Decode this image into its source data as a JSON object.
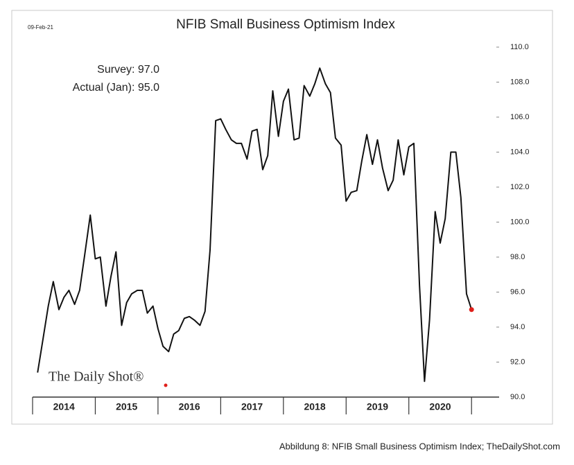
{
  "chart_data": {
    "type": "line",
    "title": "NFIB Small Business Optimism Index",
    "date": "09-Feb-21",
    "annotations": [
      "Survey: 97.0",
      "Actual (Jan): 95.0"
    ],
    "watermark": "The Daily Shot®",
    "caption": "Abbildung 8: NFIB Small Business Optimism Index; TheDailyShot.com",
    "x": [
      2014.08,
      2014.17,
      2014.25,
      2014.33,
      2014.42,
      2014.5,
      2014.58,
      2014.67,
      2014.75,
      2014.83,
      2014.92,
      2015.0,
      2015.08,
      2015.17,
      2015.25,
      2015.33,
      2015.42,
      2015.5,
      2015.58,
      2015.67,
      2015.75,
      2015.83,
      2015.92,
      2016.0,
      2016.08,
      2016.17,
      2016.25,
      2016.33,
      2016.42,
      2016.5,
      2016.58,
      2016.67,
      2016.75,
      2016.83,
      2016.92,
      2017.0,
      2017.08,
      2017.17,
      2017.25,
      2017.33,
      2017.42,
      2017.5,
      2017.58,
      2017.67,
      2017.75,
      2017.83,
      2017.92,
      2018.0,
      2018.08,
      2018.17,
      2018.25,
      2018.33,
      2018.42,
      2018.5,
      2018.58,
      2018.67,
      2018.75,
      2018.83,
      2018.92,
      2019.0,
      2019.08,
      2019.17,
      2019.25,
      2019.33,
      2019.42,
      2019.5,
      2019.58,
      2019.67,
      2019.75,
      2019.83,
      2019.92,
      2020.0,
      2020.08,
      2020.17,
      2020.25,
      2020.33,
      2020.42,
      2020.5,
      2020.58,
      2020.67,
      2020.75,
      2020.83,
      2020.92,
      2021.0
    ],
    "series": [
      {
        "name": "NFIB Small Business Optimism Index",
        "color": "#111111",
        "values": [
          91.4,
          93.4,
          95.2,
          96.6,
          95.0,
          95.7,
          96.1,
          95.3,
          96.1,
          98.1,
          100.4,
          97.9,
          98.0,
          95.2,
          96.9,
          98.3,
          94.1,
          95.4,
          95.9,
          96.1,
          96.1,
          94.8,
          95.2,
          93.9,
          92.9,
          92.6,
          93.6,
          93.8,
          94.5,
          94.6,
          94.4,
          94.1,
          94.9,
          98.4,
          105.8,
          105.9,
          105.3,
          104.7,
          104.5,
          104.5,
          103.6,
          105.2,
          105.3,
          103.0,
          103.8,
          107.5,
          104.9,
          106.9,
          107.6,
          104.7,
          104.8,
          107.8,
          107.2,
          107.9,
          108.8,
          107.9,
          107.4,
          104.8,
          104.4,
          101.2,
          101.7,
          101.8,
          103.5,
          105.0,
          103.3,
          104.7,
          103.1,
          101.8,
          102.4,
          104.7,
          102.7,
          104.3,
          104.5,
          96.4,
          90.9,
          94.4,
          100.6,
          98.8,
          100.2,
          104.0,
          104.0,
          101.4,
          95.9,
          95.0
        ]
      }
    ],
    "last_point_color": "#e0201b",
    "xlim": [
      2014,
      2021.44
    ],
    "xticks": [
      2014,
      2015,
      2016,
      2017,
      2018,
      2019,
      2020,
      2021
    ],
    "xcategories": [
      "2014",
      "2015",
      "2016",
      "2017",
      "2018",
      "2019",
      "2020"
    ],
    "ylim": [
      90,
      110
    ],
    "yticks": [
      {
        "value": 90,
        "label": "90.0"
      },
      {
        "value": 92,
        "label": "92.0"
      },
      {
        "value": 94,
        "label": "94.0"
      },
      {
        "value": 96,
        "label": "96.0"
      },
      {
        "value": 98,
        "label": "98.0"
      },
      {
        "value": 100,
        "label": "100.0"
      },
      {
        "value": 102,
        "label": "102.0"
      },
      {
        "value": 104,
        "label": "104.0"
      },
      {
        "value": 106,
        "label": "106.0"
      },
      {
        "value": 108,
        "label": "108.0"
      },
      {
        "value": 110,
        "label": "110.0"
      }
    ],
    "y_axis_side": "right",
    "grid": false
  }
}
